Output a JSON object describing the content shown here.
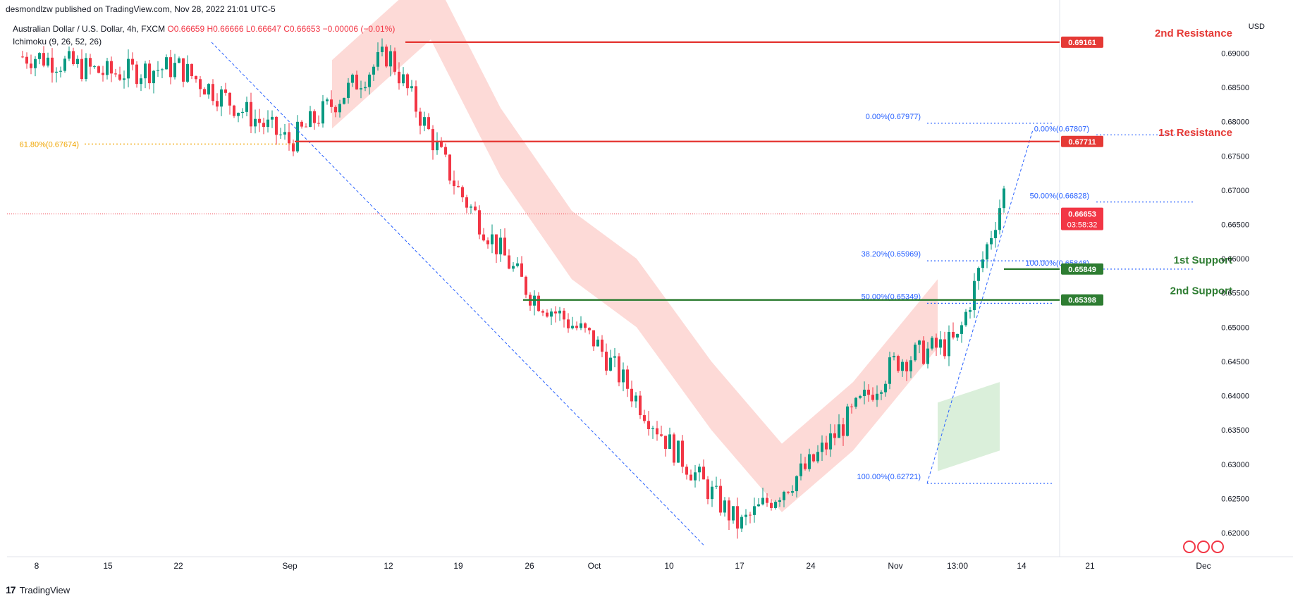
{
  "header": {
    "published_by": "desmondlzw published on TradingView.com, Nov 28, 2022 21:01 UTC-5"
  },
  "legend": {
    "symbol": "Australian Dollar / U.S. Dollar, 4h, FXCM",
    "ohlc": "O0.66659 H0.66666 L0.66647 C0.66653 −0.00006 (−0.01%)",
    "indicator": "Ichimoku (9, 26, 52, 26)"
  },
  "brand": {
    "name": "TradingView",
    "logo": "17"
  },
  "axis": {
    "currency": "USD"
  },
  "colors": {
    "up": "#089981",
    "down": "#f23645",
    "resistance": "#e53935",
    "support": "#2e7d32",
    "fib": "#2962ff",
    "fib_gold": "#f0a500",
    "cloud_bear": "#fdd3d0",
    "cloud_bull": "#d4ecd4"
  },
  "chart_data": {
    "type": "candlestick",
    "title": "Australian Dollar / U.S. Dollar, 4h, FXCM",
    "xlabel": "",
    "ylabel": "USD",
    "ylim": [
      0.6165,
      0.6955
    ],
    "grid": false,
    "x_ticks": [
      "8",
      "15",
      "22",
      "Sep",
      "12",
      "19",
      "26",
      "Oct",
      "10",
      "17",
      "24",
      "Nov",
      "13:00",
      "14",
      "21",
      "Dec"
    ],
    "y_ticks": [
      0.69,
      0.685,
      0.68,
      0.675,
      0.67,
      0.665,
      0.66,
      0.655,
      0.65,
      0.645,
      0.64,
      0.635,
      0.63,
      0.625,
      0.62
    ],
    "y_tick_labels": [
      "0.69000",
      "0.68500",
      "0.68000",
      "0.67500",
      "0.67000",
      "0.66500",
      "0.66000",
      "0.65500",
      "0.65000",
      "0.64500",
      "0.64000",
      "0.63500",
      "0.63000",
      "0.62500",
      "0.62000"
    ],
    "price_path": [
      [
        "8",
        0.6895
      ],
      [
        "15",
        0.687
      ],
      [
        "22",
        0.688
      ],
      [
        "Sep",
        0.677
      ],
      [
        "12",
        0.69
      ],
      [
        "19",
        0.67
      ],
      [
        "26",
        0.655
      ],
      [
        "Oct",
        0.648
      ],
      [
        "10",
        0.633
      ],
      [
        "17",
        0.621
      ],
      [
        "24",
        0.63
      ],
      [
        "Nov",
        0.645
      ],
      [
        "13:00",
        0.648
      ],
      [
        "14",
        0.678
      ],
      [
        "21",
        0.659
      ],
      [
        "Dec",
        0.6665
      ]
    ],
    "levels": [
      {
        "label": "2nd Resistance",
        "value": "0.69161",
        "kind": "resistance"
      },
      {
        "label": "1st Resistance",
        "value": "0.67711",
        "kind": "resistance"
      },
      {
        "label": "1st Support",
        "value": "0.65849",
        "kind": "support"
      },
      {
        "label": "2nd Support",
        "value": "0.65398",
        "kind": "support"
      }
    ],
    "fib_left": [
      {
        "label": "61.80%(0.67674)",
        "value": 0.67674
      }
    ],
    "fib_mid": [
      {
        "label": "0.00%(0.67977)",
        "value": 0.67977
      },
      {
        "label": "38.20%(0.65969)",
        "value": 0.65969
      },
      {
        "label": "50.00%(0.65349)",
        "value": 0.65349
      },
      {
        "label": "100.00%(0.62721)",
        "value": 0.62721
      }
    ],
    "fib_right": [
      {
        "label": "0.00%(0.67807)",
        "value": 0.67807
      },
      {
        "label": "50.00%(0.66828)",
        "value": 0.66828
      },
      {
        "label": "100.00%(0.65848)",
        "value": 0.65848
      }
    ],
    "current": {
      "price": "0.66653",
      "countdown": "03:58:32",
      "value": 0.66653
    }
  }
}
